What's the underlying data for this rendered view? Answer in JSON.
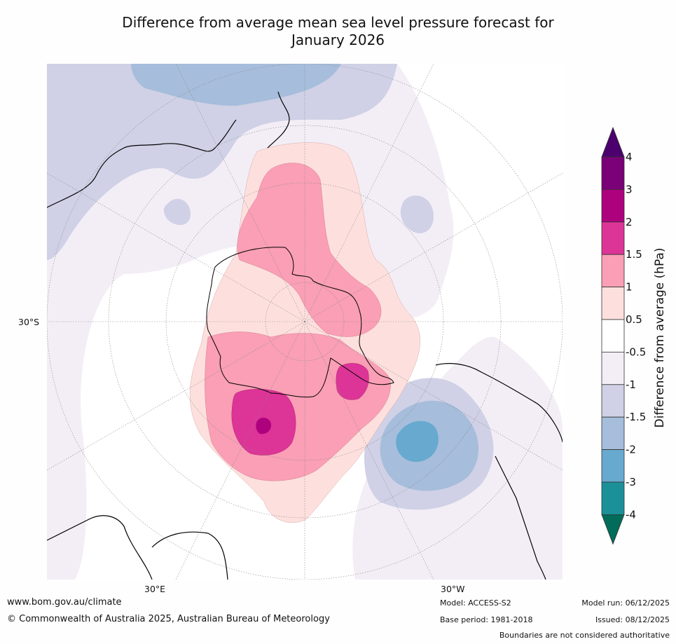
{
  "header": {
    "title_line1": "Difference from average mean sea level pressure forecast for",
    "title_line2": "January 2026"
  },
  "map": {
    "projection": "south polar stereographic",
    "lat_label": "30°S",
    "lon_labels": [
      "30°E",
      "30°W"
    ]
  },
  "colorbar": {
    "label": "Difference from average (hPa)",
    "ticks": [
      "4",
      "3",
      "2",
      "1.5",
      "1",
      "0.5",
      "-0.5",
      "-1",
      "-1.5",
      "-2",
      "-3",
      "-4"
    ],
    "colors": {
      "above_4": "#4b006e",
      "3_to_4": "#7a0177",
      "2_to_3": "#ae017e",
      "1_5_to_2": "#dd3497",
      "1_to_1_5": "#fa9fb5",
      "0_5_to_1": "#fde0dd",
      "neutral": "#ffffff",
      "m1_to_m0_5": "#f3eef6",
      "m1_5_to_m1": "#d0d1e6",
      "m2_to_m1_5": "#a6bddb",
      "m3_to_m2": "#67a9cf",
      "m4_to_m3": "#1c9099",
      "below_m4": "#016c59"
    }
  },
  "footer": {
    "website": "www.bom.gov.au/climate",
    "copyright": "© Commonwealth of Australia 2025, Australian Bureau of Meteorology",
    "model": "Model: ACCESS-S2",
    "base_period": "Base period: 1981-2018",
    "model_run": "Model run: 06/12/2025",
    "issued": "Issued: 08/12/2025",
    "disclaimer": "Boundaries are not considered authoritative"
  }
}
